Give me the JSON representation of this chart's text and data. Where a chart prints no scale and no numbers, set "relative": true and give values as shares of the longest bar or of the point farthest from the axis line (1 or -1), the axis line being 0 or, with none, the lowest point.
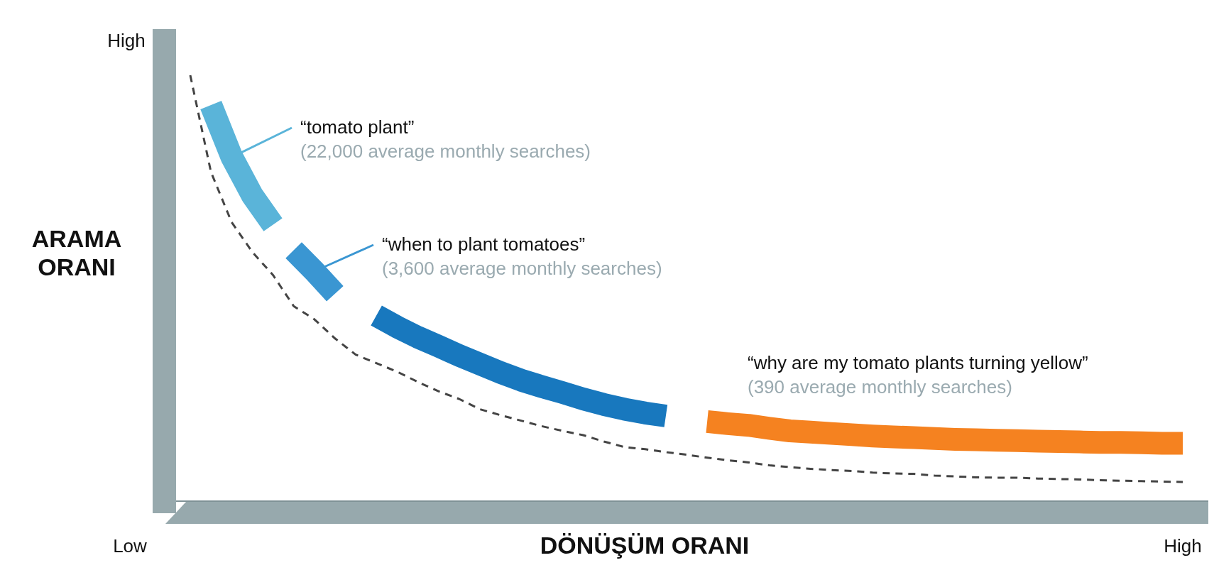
{
  "chart_data": {
    "type": "line",
    "relative": true,
    "xlabel": "DÖNÜŞÜM ORANI",
    "ylabel": "ARAMA ORANI",
    "marker": "none",
    "categories": [
      null,
      null,
      null,
      null,
      null,
      null,
      null,
      null,
      null,
      null,
      null,
      null,
      null,
      null,
      null,
      null,
      null,
      null,
      null,
      null,
      null,
      null,
      null,
      null,
      null,
      null,
      null,
      null,
      null,
      null,
      null,
      null,
      null,
      null,
      null,
      null,
      null,
      null,
      null,
      null,
      null,
      null,
      null,
      null,
      null,
      null,
      null,
      null,
      null
    ],
    "series": [
      {
        "color": "#5ab4d9",
        "line_style": "solid",
        "values": [
          null,
          0.93,
          0.809,
          0.718,
          0.649,
          null,
          null,
          null,
          null,
          null,
          null,
          null,
          null,
          null,
          null,
          null,
          null,
          null,
          null,
          null,
          null,
          null,
          null,
          null,
          null,
          null,
          null,
          null,
          null,
          null,
          null,
          null,
          null,
          null,
          null,
          null,
          null,
          null,
          null,
          null,
          null,
          null,
          null,
          null,
          null,
          null,
          null,
          null,
          null
        ]
      },
      {
        "color": "#3a96d2",
        "line_style": "solid",
        "values": [
          null,
          null,
          null,
          null,
          null,
          0.589,
          0.54,
          0.487,
          null,
          null,
          null,
          null,
          null,
          null,
          null,
          null,
          null,
          null,
          null,
          null,
          null,
          null,
          null,
          null,
          null,
          null,
          null,
          null,
          null,
          null,
          null,
          null,
          null,
          null,
          null,
          null,
          null,
          null,
          null,
          null,
          null,
          null,
          null,
          null,
          null,
          null,
          null,
          null,
          null
        ]
      },
      {
        "color": "#1878be",
        "line_style": "solid",
        "values": [
          null,
          null,
          null,
          null,
          null,
          null,
          null,
          null,
          null,
          0.436,
          0.409,
          0.385,
          0.364,
          0.342,
          0.322,
          0.302,
          0.284,
          0.269,
          0.255,
          0.24,
          0.227,
          0.216,
          0.207,
          0.2,
          null,
          null,
          null,
          null,
          null,
          null,
          null,
          null,
          null,
          null,
          null,
          null,
          null,
          null,
          null,
          null,
          null,
          null,
          null,
          null,
          null,
          null,
          null,
          null,
          null
        ]
      },
      {
        "color": "#f58220",
        "line_style": "solid",
        "values": [
          null,
          null,
          null,
          null,
          null,
          null,
          null,
          null,
          null,
          null,
          null,
          null,
          null,
          null,
          null,
          null,
          null,
          null,
          null,
          null,
          null,
          null,
          null,
          null,
          null,
          0.187,
          0.182,
          0.178,
          0.171,
          0.165,
          0.162,
          0.159,
          0.156,
          0.153,
          0.151,
          0.149,
          0.147,
          0.145,
          0.144,
          0.143,
          0.142,
          0.141,
          0.14,
          0.139,
          0.138,
          0.138,
          0.137,
          0.136,
          0.136
        ]
      },
      {
        "color": "#444444",
        "line_style": "dashed",
        "values": [
          1.0,
          0.773,
          0.655,
          0.585,
          0.531,
          0.458,
          0.427,
          0.382,
          0.344,
          0.324,
          0.304,
          0.28,
          0.258,
          0.24,
          0.216,
          0.202,
          0.189,
          0.176,
          0.165,
          0.155,
          0.14,
          0.127,
          0.122,
          0.115,
          0.109,
          0.102,
          0.096,
          0.091,
          0.084,
          0.08,
          0.076,
          0.073,
          0.071,
          0.067,
          0.065,
          0.064,
          0.06,
          0.058,
          0.056,
          0.055,
          0.055,
          0.053,
          0.052,
          0.051,
          0.049,
          0.048,
          0.047,
          0.046,
          0.045
        ]
      }
    ],
    "annotations": [
      "“tomato plant”\n(22,000 average monthly searches)",
      "“when to plant tomatoes”\n(3,600 average monthly searches)",
      "“why are my tomato plants turning yellow”\n(390 average monthly searches)",
      "High",
      "Low",
      "High"
    ]
  }
}
